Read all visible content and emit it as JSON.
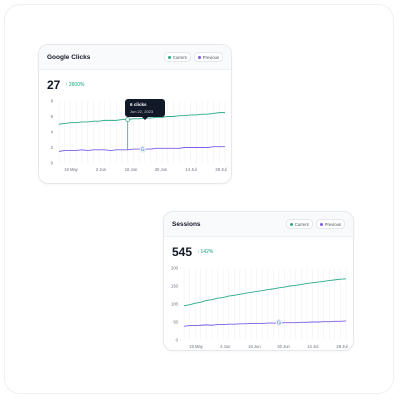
{
  "colors": {
    "current": "#2bab8a",
    "previous": "#7c5ce6",
    "positive": "#10a37f"
  },
  "legend": {
    "current": "Current",
    "previous": "Previous"
  },
  "cards": [
    {
      "title": "Google Clicks",
      "value": "27",
      "change": "2600%",
      "tooltip": {
        "title": "6 clicks",
        "date": "Jun 22, 2023"
      },
      "annotation_icon": "google-g-icon",
      "chart_data": {
        "type": "line",
        "ylim": [
          0,
          8
        ],
        "yticks": [
          0,
          2,
          4,
          6,
          8
        ],
        "xtick_labels": [
          "19 May",
          "2 Jun",
          "16 Jun",
          "30 Jun",
          "14 Jul",
          "28 Jul"
        ],
        "series": [
          {
            "name": "Current",
            "values": [
              5.0,
              5.1,
              5.2,
              5.2,
              5.3,
              5.3,
              5.4,
              5.4,
              5.5,
              5.5,
              5.5,
              5.6,
              5.6,
              5.7,
              5.7,
              5.8,
              5.8,
              5.9,
              5.9,
              6.0,
              6.0,
              6.1,
              6.1,
              6.2,
              6.2,
              6.3,
              6.3,
              6.4,
              6.5,
              6.5
            ]
          },
          {
            "name": "Previous",
            "values": [
              1.5,
              1.6,
              1.6,
              1.6,
              1.7,
              1.6,
              1.7,
              1.7,
              1.7,
              1.6,
              1.7,
              1.7,
              1.7,
              1.8,
              1.8,
              1.8,
              1.8,
              1.9,
              1.9,
              1.9,
              1.9,
              1.9,
              2.0,
              2.0,
              2.0,
              2.0,
              2.0,
              2.1,
              2.1,
              2.1
            ]
          }
        ],
        "highlight_index": 12
      }
    },
    {
      "title": "Sessions",
      "value": "545",
      "change": "142%",
      "annotation_icon": "google-g-icon",
      "chart_data": {
        "type": "line",
        "ylim": [
          0,
          200
        ],
        "yticks": [
          0,
          50,
          100,
          150,
          200
        ],
        "xtick_labels": [
          "19 May",
          "2 Jun",
          "16 Jun",
          "30 Jun",
          "14 Jul",
          "28 Jul"
        ],
        "series": [
          {
            "name": "Current",
            "values": [
              95,
              98,
              102,
              105,
              110,
              112,
              116,
              118,
              122,
              124,
              127,
              130,
              132,
              135,
              137,
              140,
              142,
              145,
              147,
              150,
              152,
              154,
              157,
              159,
              161,
              163,
              165,
              167,
              169,
              170
            ]
          },
          {
            "name": "Previous",
            "values": [
              38,
              40,
              40,
              41,
              42,
              41,
              43,
              43,
              44,
              44,
              45,
              45,
              46,
              46,
              46,
              47,
              47,
              47,
              48,
              48,
              48,
              49,
              49,
              50,
              50,
              51,
              51,
              52,
              52,
              53
            ]
          }
        ],
        "highlight_index": 17
      }
    }
  ]
}
